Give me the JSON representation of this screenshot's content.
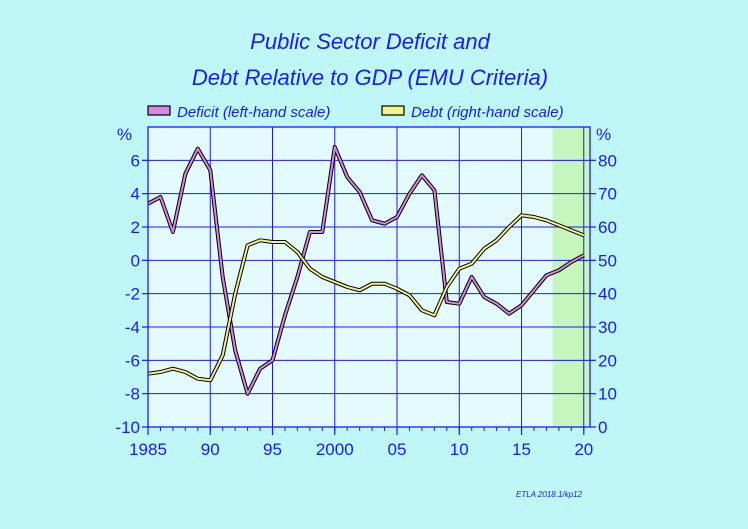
{
  "chart_data": {
    "type": "line",
    "title": "Public Sector Deficit and",
    "subtitle": "Debt Relative to GDP (EMU Criteria)",
    "left_unit": "%",
    "right_unit": "%",
    "credit": "ETLA 2018.1/kp12",
    "forecast_start": 2017.5,
    "x_range": [
      1985,
      2020.5
    ],
    "x_ticks": [
      1985,
      1990,
      1995,
      2000,
      2005,
      2010,
      2015,
      2020
    ],
    "x_tick_labels": [
      "1985",
      "90",
      "95",
      "2000",
      "05",
      "10",
      "15",
      "20"
    ],
    "y_left_range": [
      -10,
      8
    ],
    "y_left_ticks": [
      -10,
      -8,
      -6,
      -4,
      -2,
      0,
      2,
      4,
      6
    ],
    "y_left_tick_labels": [
      "-10",
      "-8",
      "-6",
      "-4",
      "-2",
      "0",
      "2",
      "4",
      "6"
    ],
    "y_right_range": [
      0,
      90
    ],
    "y_right_ticks": [
      0,
      10,
      20,
      30,
      40,
      50,
      60,
      70,
      80
    ],
    "y_right_tick_labels": [
      "0",
      "10",
      "20",
      "30",
      "40",
      "50",
      "60",
      "70",
      "80"
    ],
    "grid": true,
    "legend_placement": "top",
    "series": [
      {
        "name": "Deficit (left-hand scale)",
        "axis": "left",
        "color": "#d488e0",
        "x": [
          1985,
          1986,
          1987,
          1988,
          1989,
          1990,
          1991,
          1992,
          1993,
          1994,
          1995,
          1996,
          1997,
          1998,
          1999,
          2000,
          2001,
          2002,
          2003,
          2004,
          2005,
          2006,
          2007,
          2008,
          2009,
          2010,
          2011,
          2012,
          2013,
          2014,
          2015,
          2016,
          2017,
          2018,
          2019,
          2020
        ],
        "values": [
          3.4,
          3.8,
          1.7,
          5.2,
          6.7,
          5.4,
          -1.0,
          -5.4,
          -8.0,
          -6.5,
          -6.0,
          -3.3,
          -1.0,
          1.7,
          1.7,
          6.8,
          5.0,
          4.1,
          2.4,
          2.2,
          2.6,
          4.0,
          5.1,
          4.2,
          -2.5,
          -2.6,
          -1.0,
          -2.2,
          -2.6,
          -3.2,
          -2.7,
          -1.8,
          -0.9,
          -0.6,
          -0.1,
          0.3
        ]
      },
      {
        "name": "Debt (right-hand scale)",
        "axis": "right",
        "color": "#f4f08a",
        "x": [
          1985,
          1986,
          1987,
          1988,
          1989,
          1990,
          1991,
          1992,
          1993,
          1994,
          1995,
          1996,
          1997,
          1998,
          1999,
          2000,
          2001,
          2002,
          2003,
          2004,
          2005,
          2006,
          2007,
          2008,
          2009,
          2010,
          2011,
          2012,
          2013,
          2014,
          2015,
          2016,
          2017,
          2018,
          2019,
          2020
        ],
        "values": [
          16,
          16.5,
          17.5,
          16.5,
          14.5,
          14,
          21.5,
          40,
          54.5,
          56,
          55.5,
          55.5,
          52.5,
          47.5,
          45,
          43.5,
          42,
          41,
          43,
          43,
          41.5,
          39.5,
          35,
          33.5,
          42,
          47.5,
          49,
          53.5,
          56,
          60,
          63.5,
          63,
          62,
          60.5,
          59,
          57.5
        ]
      }
    ]
  }
}
